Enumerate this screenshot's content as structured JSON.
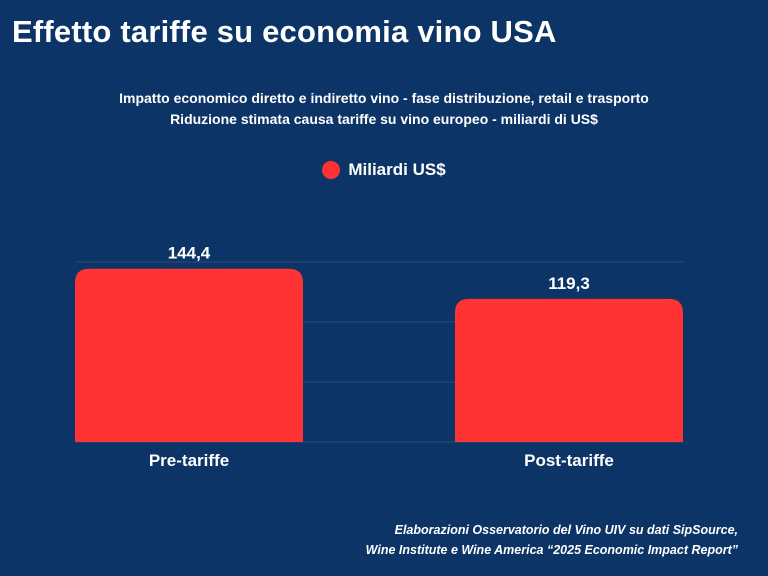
{
  "title": "Effetto tariffe su economia vino USA",
  "subtitle_line1": "Impatto economico diretto e indiretto vino - fase distribuzione, retail e trasporto",
  "subtitle_line2": "Riduzione stimata causa tariffe su vino europeo - miliardi di US$",
  "source_line1": "Elaborazioni Osservatorio del Vino UIV su dati SipSource,",
  "source_line2": "Wine Institute e Wine America “2025 Economic Impact Report”",
  "colors": {
    "background": "#0d3466",
    "bar": "#ff3333",
    "grid": "#264a7a",
    "text": "#ffffff"
  },
  "chart_data": {
    "type": "bar",
    "title": "Effetto tariffe su economia vino USA",
    "categories": [
      "Pre-tariffe",
      "Post-tariffe"
    ],
    "series": [
      {
        "name": "Miliardi US$",
        "values": [
          144.4,
          119.3
        ]
      }
    ],
    "data_labels": [
      "144,4",
      "119,3"
    ],
    "ylim": [
      0,
      150
    ],
    "grid": true,
    "legend": "top-center",
    "xlabel": "",
    "ylabel": ""
  }
}
